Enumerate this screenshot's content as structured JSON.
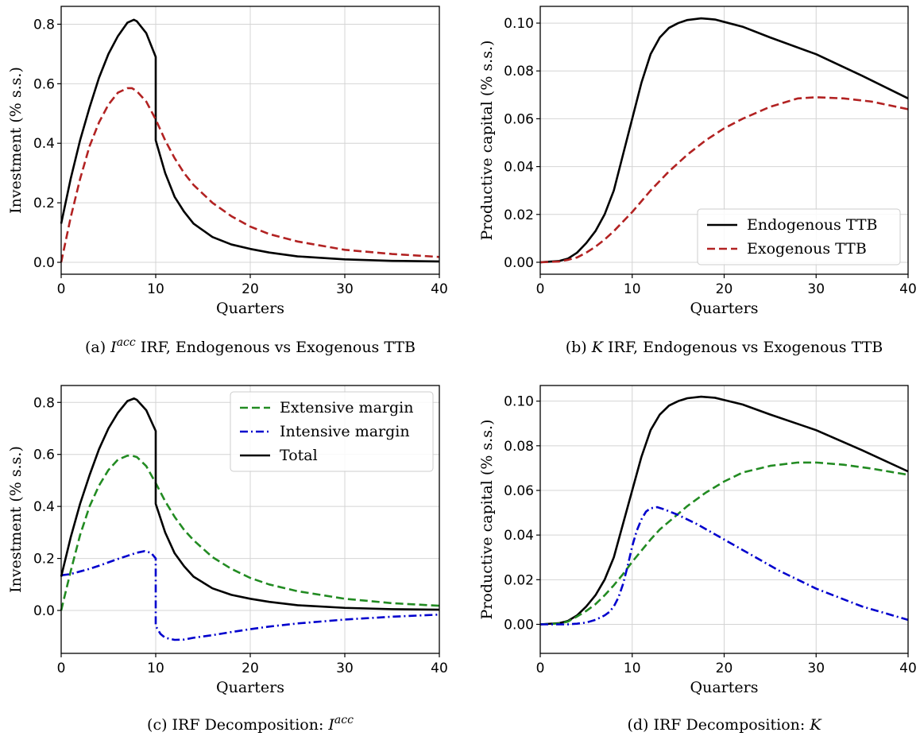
{
  "colors": {
    "total": "#000000",
    "endogenous": "#000000",
    "exogenous": "#b22222",
    "extensive": "#228b22",
    "intensive": "#0000cd",
    "grid": "#d4d4d4"
  },
  "chart_data": [
    {
      "type": "line",
      "caption": {
        "prefix": "(a) ",
        "italic": "I",
        "sup": "acc",
        "rest": " IRF, Endogenous vs Exogenous TTB"
      },
      "xlabel": "Quarters",
      "ylabel": "Investment (% s.s.)",
      "xlim": [
        0,
        40
      ],
      "ylim": [
        -0.04,
        0.86
      ],
      "xticks": [
        0,
        10,
        20,
        30,
        40
      ],
      "yticks": [
        0.0,
        0.2,
        0.4,
        0.6,
        0.8
      ],
      "ytick_labels": [
        "0.0",
        "0.2",
        "0.4",
        "0.6",
        "0.8"
      ],
      "grid": true,
      "legend": null,
      "series": [
        {
          "key": "endogenous",
          "style": "solid",
          "x": [
            0,
            1,
            2,
            3,
            4,
            5,
            6,
            7,
            7.7,
            8,
            9,
            10,
            10,
            11,
            12,
            13,
            14,
            16,
            18,
            20,
            22,
            25,
            30,
            35,
            40
          ],
          "y": [
            0.13,
            0.28,
            0.41,
            0.52,
            0.62,
            0.7,
            0.76,
            0.805,
            0.815,
            0.81,
            0.77,
            0.69,
            0.41,
            0.3,
            0.22,
            0.17,
            0.13,
            0.085,
            0.06,
            0.045,
            0.033,
            0.02,
            0.01,
            0.005,
            0.003
          ]
        },
        {
          "key": "exogenous",
          "style": "dashed",
          "x": [
            0,
            1,
            2,
            3,
            4,
            5,
            6,
            7,
            7.5,
            8,
            9,
            10,
            11,
            12,
            13,
            14,
            16,
            18,
            20,
            22,
            25,
            30,
            35,
            40
          ],
          "y": [
            0.0,
            0.15,
            0.28,
            0.39,
            0.47,
            0.53,
            0.57,
            0.585,
            0.585,
            0.575,
            0.54,
            0.48,
            0.41,
            0.35,
            0.3,
            0.26,
            0.2,
            0.155,
            0.12,
            0.095,
            0.07,
            0.042,
            0.028,
            0.018
          ]
        }
      ]
    },
    {
      "type": "line",
      "caption": {
        "prefix": "(b) ",
        "italic": "K",
        "sup": "",
        "rest": " IRF, Endogenous vs Exogenous TTB"
      },
      "xlabel": "Quarters",
      "ylabel": "Productive capital (% s.s.)",
      "xlim": [
        0,
        40
      ],
      "ylim": [
        -0.005,
        0.107
      ],
      "xticks": [
        0,
        10,
        20,
        30,
        40
      ],
      "yticks": [
        0.0,
        0.02,
        0.04,
        0.06,
        0.08,
        0.1
      ],
      "ytick_labels": [
        "0.00",
        "0.02",
        "0.04",
        "0.06",
        "0.08",
        "0.10"
      ],
      "grid": true,
      "legend": {
        "position": "lower-right",
        "entries": [
          {
            "key": "endogenous",
            "label": "Endogenous TTB",
            "style": "solid"
          },
          {
            "key": "exogenous",
            "label": "Exogenous TTB",
            "style": "dashed"
          }
        ]
      },
      "series": [
        {
          "key": "endogenous",
          "style": "solid",
          "x": [
            0,
            2,
            3,
            4,
            5,
            6,
            7,
            8,
            9,
            10,
            11,
            12,
            13,
            14,
            15,
            16,
            17.5,
            19,
            20,
            22,
            25,
            30,
            35,
            40
          ],
          "y": [
            0.0,
            0.0005,
            0.0015,
            0.004,
            0.008,
            0.013,
            0.02,
            0.03,
            0.045,
            0.06,
            0.075,
            0.087,
            0.094,
            0.098,
            0.1,
            0.1013,
            0.102,
            0.1015,
            0.1005,
            0.0985,
            0.094,
            0.087,
            0.078,
            0.0685
          ]
        },
        {
          "key": "exogenous",
          "style": "dashed",
          "x": [
            0,
            2,
            3,
            4,
            5,
            6,
            7,
            8,
            9,
            10,
            11,
            12,
            13,
            14,
            16,
            18,
            20,
            22,
            25,
            28,
            30,
            33,
            36,
            40
          ],
          "y": [
            0.0,
            0.0003,
            0.001,
            0.002,
            0.004,
            0.0065,
            0.0095,
            0.013,
            0.017,
            0.021,
            0.0255,
            0.03,
            0.034,
            0.038,
            0.045,
            0.051,
            0.056,
            0.06,
            0.065,
            0.0685,
            0.069,
            0.0685,
            0.0672,
            0.064
          ]
        }
      ]
    },
    {
      "type": "line",
      "caption": {
        "prefix": "(c) IRF Decomposition: ",
        "italic": "I",
        "sup": "acc",
        "rest": ""
      },
      "xlabel": "Quarters",
      "ylabel": "Investment (% s.s.)",
      "xlim": [
        0,
        40
      ],
      "ylim": [
        -0.165,
        0.865
      ],
      "xticks": [
        0,
        10,
        20,
        30,
        40
      ],
      "yticks": [
        0.0,
        0.2,
        0.4,
        0.6,
        0.8
      ],
      "ytick_labels": [
        "0.0",
        "0.2",
        "0.4",
        "0.6",
        "0.8"
      ],
      "grid": true,
      "legend": {
        "position": "upper-right",
        "entries": [
          {
            "key": "extensive",
            "label": "Extensive margin",
            "style": "dashed"
          },
          {
            "key": "intensive",
            "label": "Intensive margin",
            "style": "dashdot"
          },
          {
            "key": "total",
            "label": "Total",
            "style": "solid"
          }
        ]
      },
      "series": [
        {
          "key": "extensive",
          "style": "dashed",
          "x": [
            0,
            1,
            2,
            3,
            4,
            5,
            6,
            7,
            7.5,
            8,
            9,
            10,
            11,
            12,
            13,
            14,
            16,
            18,
            20,
            22,
            25,
            30,
            35,
            40
          ],
          "y": [
            0.0,
            0.15,
            0.29,
            0.4,
            0.48,
            0.54,
            0.58,
            0.595,
            0.595,
            0.59,
            0.555,
            0.49,
            0.42,
            0.36,
            0.31,
            0.27,
            0.205,
            0.16,
            0.125,
            0.1,
            0.074,
            0.045,
            0.028,
            0.018
          ]
        },
        {
          "key": "intensive",
          "style": "dashdot",
          "x": [
            0,
            1,
            2,
            3,
            4,
            5,
            6,
            7,
            8,
            8.8,
            9.5,
            10,
            10,
            10.5,
            11,
            12,
            13,
            14,
            16,
            18,
            20,
            22,
            25,
            30,
            35,
            40
          ],
          "y": [
            0.135,
            0.14,
            0.15,
            0.16,
            0.172,
            0.185,
            0.198,
            0.21,
            0.222,
            0.228,
            0.222,
            0.2,
            -0.06,
            -0.09,
            -0.105,
            -0.113,
            -0.112,
            -0.105,
            -0.095,
            -0.083,
            -0.072,
            -0.062,
            -0.05,
            -0.035,
            -0.024,
            -0.016
          ]
        },
        {
          "key": "total",
          "style": "solid",
          "x": [
            0,
            1,
            2,
            3,
            4,
            5,
            6,
            7,
            7.7,
            8,
            9,
            10,
            10,
            11,
            12,
            13,
            14,
            16,
            18,
            20,
            22,
            25,
            30,
            35,
            40
          ],
          "y": [
            0.13,
            0.28,
            0.41,
            0.52,
            0.62,
            0.7,
            0.76,
            0.805,
            0.815,
            0.81,
            0.77,
            0.69,
            0.41,
            0.3,
            0.22,
            0.17,
            0.13,
            0.085,
            0.06,
            0.045,
            0.033,
            0.02,
            0.01,
            0.005,
            0.003
          ]
        }
      ]
    },
    {
      "type": "line",
      "caption": {
        "prefix": "(d) IRF Decomposition: ",
        "italic": "K",
        "sup": "",
        "rest": ""
      },
      "xlabel": "Quarters",
      "ylabel": "Productive capital (% s.s.)",
      "xlim": [
        0,
        40
      ],
      "ylim": [
        -0.013,
        0.107
      ],
      "xticks": [
        0,
        10,
        20,
        30,
        40
      ],
      "yticks": [
        0.0,
        0.02,
        0.04,
        0.06,
        0.08,
        0.1
      ],
      "ytick_labels": [
        "0.00",
        "0.02",
        "0.04",
        "0.06",
        "0.08",
        "0.10"
      ],
      "grid": true,
      "legend": null,
      "series": [
        {
          "key": "total",
          "style": "solid",
          "x": [
            0,
            2,
            3,
            4,
            5,
            6,
            7,
            8,
            9,
            10,
            11,
            12,
            13,
            14,
            15,
            16,
            17.5,
            19,
            20,
            22,
            25,
            30,
            35,
            40
          ],
          "y": [
            0.0,
            0.0005,
            0.0015,
            0.004,
            0.008,
            0.013,
            0.02,
            0.03,
            0.045,
            0.06,
            0.075,
            0.087,
            0.094,
            0.098,
            0.1,
            0.1013,
            0.102,
            0.1015,
            0.1005,
            0.0985,
            0.094,
            0.087,
            0.078,
            0.0685
          ]
        },
        {
          "key": "extensive",
          "style": "dashed",
          "x": [
            0,
            2,
            3,
            4,
            5,
            6,
            7,
            8,
            9,
            10,
            11,
            12,
            13,
            14,
            16,
            18,
            20,
            22,
            25,
            28,
            30,
            33,
            36,
            40
          ],
          "y": [
            0.0,
            0.0004,
            0.0012,
            0.0035,
            0.006,
            0.009,
            0.013,
            0.0175,
            0.0225,
            0.028,
            0.033,
            0.038,
            0.0425,
            0.046,
            0.053,
            0.059,
            0.064,
            0.068,
            0.071,
            0.0725,
            0.0725,
            0.0715,
            0.0698,
            0.067
          ]
        },
        {
          "key": "intensive",
          "style": "dashdot",
          "x": [
            0,
            2,
            3,
            4,
            5,
            6,
            7,
            7.5,
            8,
            8.5,
            9,
            9.5,
            10,
            10.5,
            11,
            11.5,
            12,
            12.7,
            13.5,
            15,
            17,
            20,
            23,
            26,
            30,
            35,
            40
          ],
          "y": [
            0.0,
            0.0,
            0.0,
            0.0003,
            0.0008,
            0.002,
            0.004,
            0.0055,
            0.008,
            0.012,
            0.018,
            0.026,
            0.035,
            0.042,
            0.047,
            0.0505,
            0.052,
            0.0525,
            0.0515,
            0.049,
            0.045,
            0.038,
            0.031,
            0.024,
            0.016,
            0.008,
            0.002
          ]
        }
      ]
    }
  ]
}
